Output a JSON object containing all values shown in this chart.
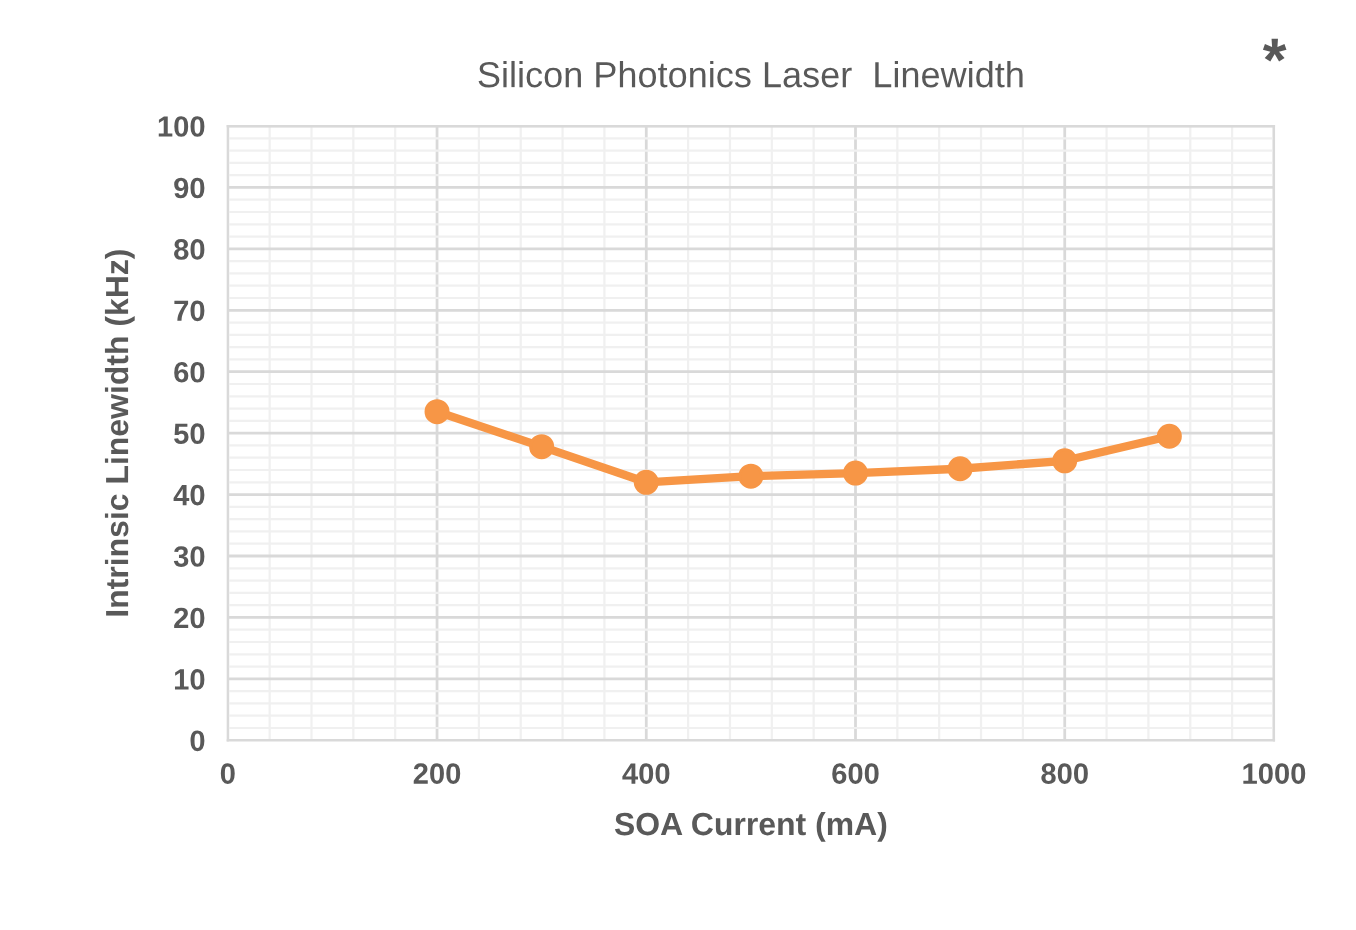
{
  "chart_data": {
    "type": "line",
    "title": "Silicon Photonics Laser  Linewidth",
    "xlabel": "SOA Current (mA)",
    "ylabel": "Intrinsic Linewidth (kHz)",
    "x": [
      200,
      300,
      400,
      500,
      600,
      700,
      800,
      900
    ],
    "series": [
      {
        "color": "#f79646",
        "values": [
          53.5,
          47.8,
          42.0,
          43.0,
          43.5,
          44.2,
          45.5,
          49.5
        ]
      }
    ],
    "xlim": [
      0,
      1000
    ],
    "xticks": [
      0,
      200,
      400,
      600,
      800,
      1000
    ],
    "ylim": [
      0,
      100
    ],
    "yticks": [
      0,
      10,
      20,
      30,
      40,
      50,
      60,
      70,
      80,
      90,
      100
    ],
    "grid": true,
    "marker": "circle",
    "line_style": "solid",
    "annotations": [
      "*"
    ]
  }
}
